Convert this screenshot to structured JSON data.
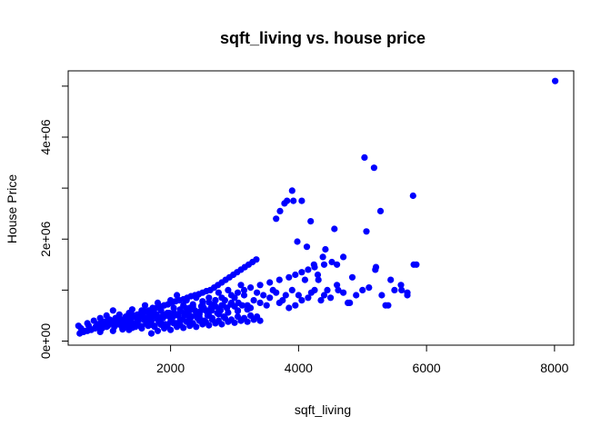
{
  "chart_data": {
    "type": "scatter",
    "title": "sqft_living vs. house price",
    "xlabel": "sqft_living",
    "ylabel": "House Price",
    "xlim": [
      400,
      8300
    ],
    "ylim": [
      -80000,
      5300000
    ],
    "x_ticks": [
      2000,
      4000,
      6000,
      8000
    ],
    "x_tick_labels": [
      "2000",
      "4000",
      "6000",
      "8000"
    ],
    "y_ticks": [
      0,
      1000000,
      2000000,
      3000000,
      4000000,
      5000000
    ],
    "y_tick_labels": [
      "0e+00",
      "",
      "2e+06",
      "",
      "4e+06",
      ""
    ],
    "grid": false,
    "point_color": "#0000ff",
    "series": [
      {
        "x": [
          560,
          600,
          650,
          700,
          720,
          760,
          800,
          830,
          860,
          900,
          930,
          960,
          1000,
          1020,
          1050,
          1080,
          1100,
          1120,
          1150,
          1180,
          1200,
          1230,
          1260,
          1290,
          1300,
          1330,
          1350,
          1380,
          1400,
          1420,
          1450,
          1480,
          1500,
          1520,
          1550,
          1580,
          1600,
          1620,
          1650,
          1680,
          1700,
          1720,
          1750,
          1780,
          1800,
          1820,
          1850,
          1880,
          1900,
          1920,
          1950,
          1980,
          2000,
          2020,
          2050,
          2080,
          2100,
          2120,
          2150,
          2180,
          2200,
          2230,
          2250,
          2280,
          2300,
          2330,
          2350,
          2380,
          2400,
          2420,
          2450,
          2480,
          2500,
          2520,
          2550,
          2580,
          2600,
          2630,
          2650,
          2680,
          2700,
          2730,
          2750,
          2780,
          2800,
          2830,
          2850,
          2880,
          2900,
          2950,
          3000,
          3050,
          3100,
          3150,
          3200,
          3250,
          3300,
          3350,
          3400,
          3450,
          3500,
          3550,
          3600,
          3650,
          3700,
          3750,
          3800,
          3850,
          3900,
          3950,
          4000,
          4050,
          4100,
          4150,
          4200,
          4250,
          4300,
          4350,
          4400,
          4450,
          4500,
          4600,
          4700,
          4800,
          4900,
          5000,
          5100,
          5200,
          5300,
          5400,
          5500,
          5600,
          5700,
          5800,
          580,
          640,
          700,
          760,
          820,
          880,
          940,
          1000,
          1060,
          1120,
          1180,
          1240,
          1300,
          1360,
          1420,
          1480,
          1540,
          1600,
          1660,
          1720,
          1780,
          1840,
          1900,
          1960,
          2020,
          2080,
          2140,
          2200,
          2260,
          2320,
          2380,
          2440,
          2500,
          2560,
          2620,
          2680,
          2740,
          2800,
          2860,
          2920,
          2980,
          3040,
          3100,
          3160,
          3220,
          3280,
          3340,
          900,
          960,
          1020,
          1080,
          1140,
          1200,
          1260,
          1320,
          1380,
          1440,
          1500,
          1560,
          1620,
          1680,
          1740,
          1800,
          1860,
          1920,
          1980,
          2040,
          2100,
          2160,
          2220,
          2280,
          2340,
          2400,
          2460,
          2520,
          2580,
          2640,
          2700,
          2760,
          2820,
          2880,
          2940,
          3000,
          3060,
          3120,
          1250,
          1350,
          1450,
          1550,
          1650,
          1750,
          1850,
          1950,
          2050,
          2150,
          2250,
          2350,
          2450,
          2550,
          2650,
          2750,
          2850,
          2950,
          3050,
          3150,
          3250,
          3350,
          1700,
          1800,
          1900,
          2000,
          2100,
          2200,
          2300,
          2400,
          2500,
          2600,
          2700,
          2800,
          2900,
          3000,
          3100,
          3200,
          3300,
          3400,
          3650,
          3710,
          3780,
          3820,
          3900,
          3920,
          3980,
          4050,
          4130,
          4190,
          4240,
          4310,
          4380,
          4420,
          4560,
          4600,
          4620,
          4770,
          4840,
          5030,
          5060,
          5180,
          5210,
          5280,
          5360,
          5440,
          5610,
          5700,
          5790,
          5840,
          8010,
          1000,
          1150,
          1330,
          1500,
          1600,
          1750,
          1900,
          2050,
          2150,
          2250,
          2350,
          2500,
          2600,
          2700,
          2800,
          2950,
          3050,
          3150,
          3250,
          3400,
          3550,
          3700,
          3850,
          3950,
          4050,
          4150,
          4250,
          4400,
          4520,
          4700,
          900,
          1100,
          1250,
          1400,
          1550,
          1700,
          1850,
          2000,
          2150,
          2300,
          2450,
          2600,
          2750,
          2900,
          3050,
          3200
        ],
        "y": [
          300000,
          250000,
          200000,
          350000,
          300000,
          220000,
          400000,
          280000,
          330000,
          450000,
          250000,
          380000,
          500000,
          300000,
          420000,
          350000,
          600000,
          280000,
          450000,
          380000,
          520000,
          300000,
          420000,
          350000,
          480000,
          260000,
          550000,
          400000,
          620000,
          330000,
          470000,
          380000,
          520000,
          300000,
          600000,
          420000,
          700000,
          350000,
          480000,
          550000,
          400000,
          650000,
          300000,
          520000,
          750000,
          380000,
          600000,
          450000,
          700000,
          330000,
          550000,
          480000,
          800000,
          400000,
          650000,
          350000,
          900000,
          500000,
          620000,
          420000,
          700000,
          550000,
          800000,
          380000,
          650000,
          480000,
          720000,
          600000,
          850000,
          450000,
          520000,
          680000,
          780000,
          400000,
          600000,
          500000,
          850000,
          650000,
          450000,
          720000,
          800000,
          550000,
          950000,
          600000,
          700000,
          480000,
          800000,
          650000,
          1000000,
          750000,
          850000,
          600000,
          1100000,
          900000,
          700000,
          650000,
          800000,
          950000,
          750000,
          900000,
          700000,
          850000,
          1000000,
          950000,
          750000,
          800000,
          900000,
          650000,
          1000000,
          700000,
          900000,
          800000,
          1200000,
          850000,
          950000,
          1000000,
          1300000,
          800000,
          900000,
          1000000,
          850000,
          1100000,
          950000,
          750000,
          900000,
          1000000,
          1050000,
          1400000,
          900000,
          700000,
          1000000,
          1100000,
          900000,
          1500000,
          150000,
          180000,
          200000,
          230000,
          250000,
          280000,
          300000,
          320000,
          350000,
          380000,
          400000,
          420000,
          450000,
          480000,
          500000,
          520000,
          550000,
          580000,
          600000,
          620000,
          650000,
          680000,
          700000,
          720000,
          750000,
          780000,
          800000,
          820000,
          850000,
          880000,
          900000,
          920000,
          950000,
          980000,
          1000000,
          1050000,
          1100000,
          1150000,
          1200000,
          1250000,
          1300000,
          1350000,
          1400000,
          1450000,
          1500000,
          1550000,
          1600000,
          350000,
          300000,
          400000,
          350000,
          450000,
          400000,
          380000,
          420000,
          350000,
          480000,
          420000,
          500000,
          380000,
          450000,
          550000,
          420000,
          480000,
          500000,
          550000,
          480000,
          520000,
          580000,
          500000,
          550000,
          620000,
          520000,
          580000,
          650000,
          550000,
          600000,
          680000,
          620000,
          700000,
          650000,
          720000,
          680000,
          750000,
          700000,
          250000,
          220000,
          280000,
          250000,
          300000,
          280000,
          320000,
          300000,
          350000,
          320000,
          380000,
          350000,
          400000,
          380000,
          420000,
          400000,
          450000,
          420000,
          480000,
          450000,
          500000,
          480000,
          150000,
          200000,
          250000,
          220000,
          280000,
          260000,
          300000,
          280000,
          330000,
          310000,
          350000,
          330000,
          380000,
          360000,
          400000,
          380000,
          420000,
          400000,
          2400000,
          2550000,
          2700000,
          2750000,
          2950000,
          2750000,
          1950000,
          2750000,
          1850000,
          2350000,
          1500000,
          1200000,
          1650000,
          1800000,
          2200000,
          1500000,
          1000000,
          750000,
          1250000,
          3600000,
          2150000,
          3400000,
          1450000,
          2550000,
          700000,
          1200000,
          1000000,
          950000,
          2850000,
          1500000,
          5100000,
          280000,
          320000,
          360000,
          410000,
          450000,
          480000,
          520000,
          560000,
          600000,
          640000,
          680000,
          720000,
          760000,
          800000,
          850000,
          900000,
          950000,
          1000000,
          1050000,
          1100000,
          1150000,
          1200000,
          1250000,
          1300000,
          1350000,
          1400000,
          1450000,
          1500000,
          1550000,
          1650000,
          180000,
          200000,
          230000,
          260000,
          290000,
          320000,
          350000,
          380000,
          410000,
          440000,
          470000,
          500000,
          530000,
          560000,
          590000,
          620000
        ]
      }
    ]
  }
}
